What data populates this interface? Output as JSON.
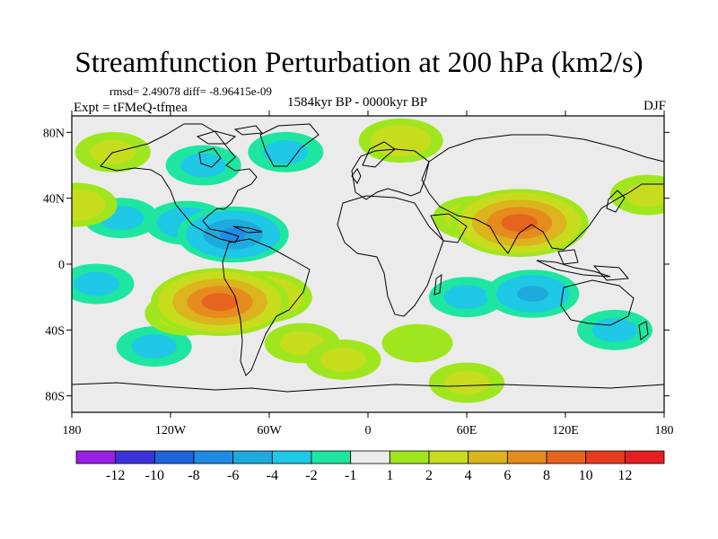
{
  "chart_data": {
    "type": "heatmap",
    "title": "Streamfunction Perturbation at 200 hPa (km2/s)",
    "stats_text": "rmsd= 2.49078 diff= -8.96415e-09",
    "experiment": "Expt = tFMeQ-tfmea",
    "period": "1584kyr BP - 0000kyr BP",
    "season": "DJF",
    "x_ticks": [
      "180",
      "120W",
      "60W",
      "0",
      "60E",
      "120E",
      "180"
    ],
    "x_tick_values": [
      -180,
      -120,
      -60,
      0,
      60,
      120,
      180
    ],
    "y_ticks": [
      "80N",
      "40N",
      "0",
      "40S",
      "80S"
    ],
    "y_tick_values": [
      80,
      40,
      0,
      -40,
      -80
    ],
    "xlim": [
      -180,
      180
    ],
    "ylim": [
      -90,
      90
    ],
    "colorbar": {
      "labels": [
        "-12",
        "-10",
        "-8",
        "-6",
        "-4",
        "-2",
        "-1",
        "1",
        "2",
        "4",
        "6",
        "8",
        "10",
        "12"
      ],
      "colors": [
        "#9b1ee6",
        "#3c32dc",
        "#1e64dc",
        "#1e8ce6",
        "#1eaadc",
        "#1ec8e6",
        "#1ee6a0",
        "#ebebeb",
        "#a0e61e",
        "#c8dc1e",
        "#dcb41e",
        "#e68c1e",
        "#e6641e",
        "#e63c1e",
        "#e61e1e"
      ]
    },
    "anomalies": [
      {
        "lon": -90,
        "lat": -23,
        "value": 9
      },
      {
        "lon": -65,
        "lat": -20,
        "value": 5
      },
      {
        "lon": -110,
        "lat": -30,
        "value": 3
      },
      {
        "lon": -40,
        "lat": -48,
        "value": 2
      },
      {
        "lon": -15,
        "lat": -58,
        "value": 2
      },
      {
        "lon": 60,
        "lat": -72,
        "value": 2
      },
      {
        "lon": 92,
        "lat": 25,
        "value": 9
      },
      {
        "lon": 65,
        "lat": 28,
        "value": 3
      },
      {
        "lon": 20,
        "lat": 75,
        "value": 3
      },
      {
        "lon": -155,
        "lat": 68,
        "value": 2
      },
      {
        "lon": -178,
        "lat": 36,
        "value": 3
      },
      {
        "lon": 170,
        "lat": 42,
        "value": 2
      },
      {
        "lon": -82,
        "lat": 18,
        "value": -6
      },
      {
        "lon": -110,
        "lat": 25,
        "value": -3
      },
      {
        "lon": -150,
        "lat": 28,
        "value": -2
      },
      {
        "lon": -165,
        "lat": -12,
        "value": -2
      },
      {
        "lon": -130,
        "lat": -50,
        "value": -2
      },
      {
        "lon": 100,
        "lat": -18,
        "value": -4
      },
      {
        "lon": 60,
        "lat": -20,
        "value": -2
      },
      {
        "lon": 150,
        "lat": -40,
        "value": -2
      },
      {
        "lon": -50,
        "lat": 68,
        "value": -2
      },
      {
        "lon": -100,
        "lat": 60,
        "value": -2
      },
      {
        "lon": 30,
        "lat": -48,
        "value": 1.5
      }
    ]
  }
}
